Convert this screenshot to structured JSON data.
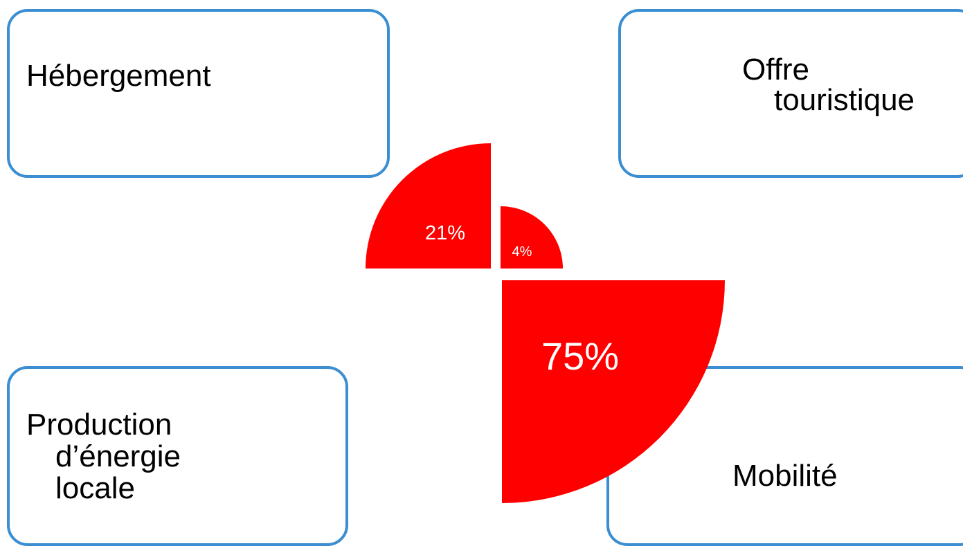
{
  "boxes": {
    "hebergement": {
      "lines": [
        "Hébergement"
      ]
    },
    "offre": {
      "lines": [
        "Offre",
        "touristique"
      ]
    },
    "production": {
      "lines": [
        "Production",
        "d’énergie",
        "locale"
      ]
    },
    "mobilite": {
      "lines": [
        "Mobilité"
      ]
    }
  },
  "chart_data": {
    "type": "pie",
    "slices": [
      {
        "label": "21%",
        "value": 21,
        "color": "#ff0000"
      },
      {
        "label": "4%",
        "value": 4,
        "color": "#ff0000"
      },
      {
        "label": "75%",
        "value": 75,
        "color": "#ff0000"
      }
    ]
  },
  "colors": {
    "box_border": "#3a8ed1",
    "slice_fill": "#ff0000"
  }
}
